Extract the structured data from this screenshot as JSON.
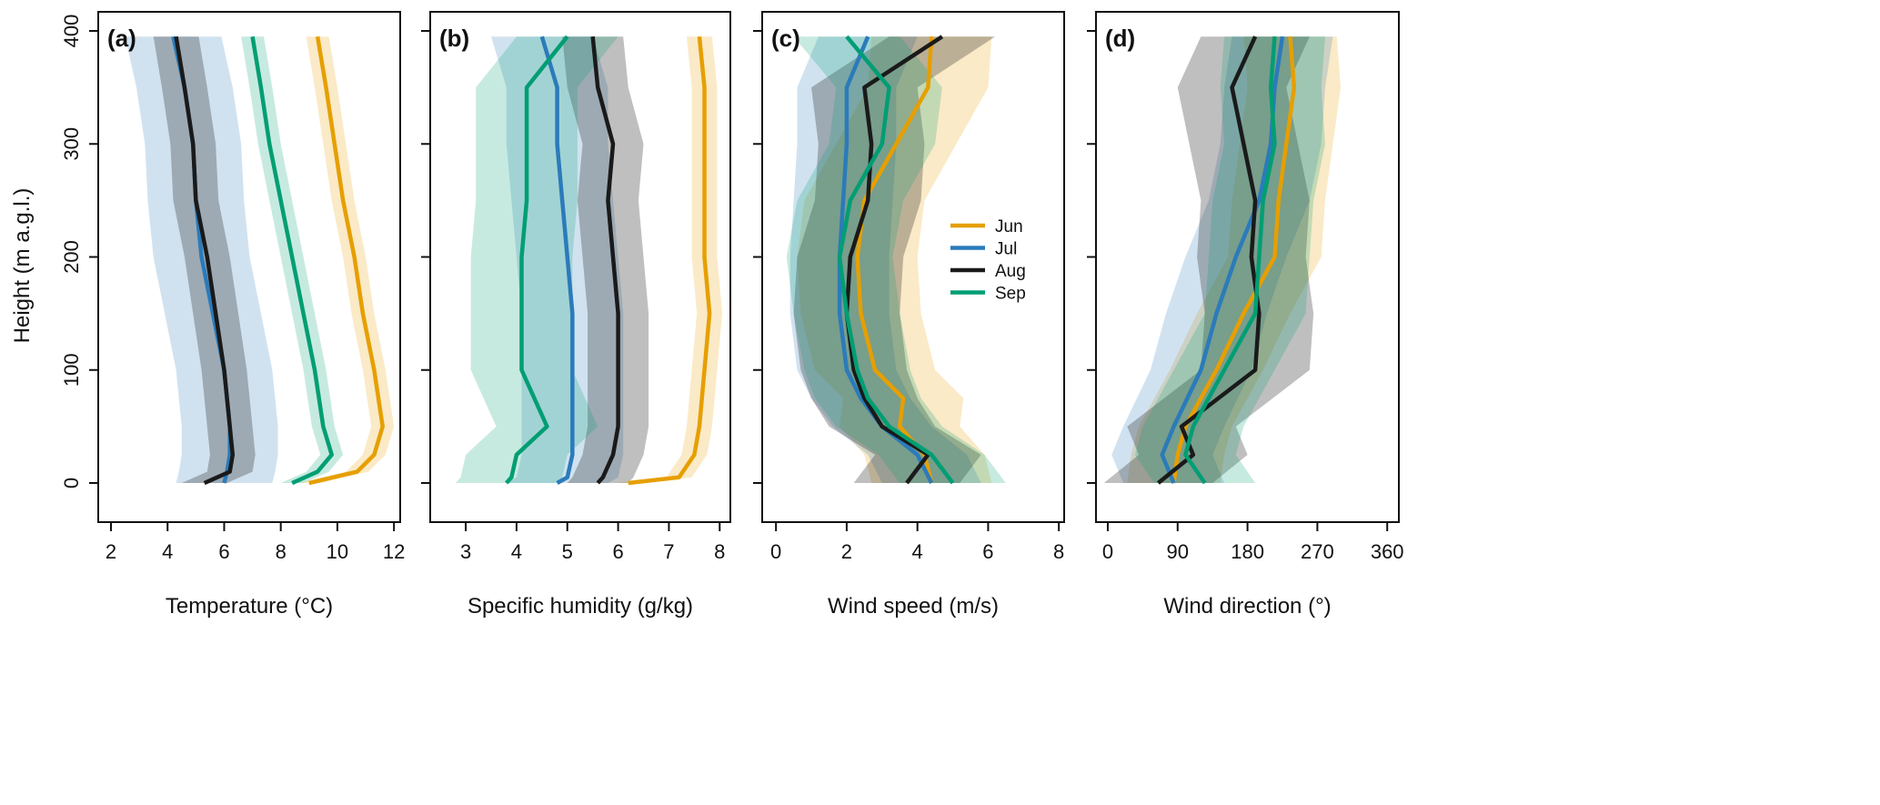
{
  "chart_data": [
    {
      "type": "line",
      "panel_label": "(a)",
      "xlabel": "Temperature (°C)",
      "ylabel": "Height (m a.g.l.)",
      "xlim": [
        1.55,
        12.22
      ],
      "ylim": [
        -34.6,
        416.9
      ],
      "xticks": [
        2,
        4,
        6,
        8,
        10,
        12
      ],
      "yticks": [
        0,
        100,
        200,
        300,
        400
      ],
      "heights": [
        0,
        10,
        25,
        50,
        100,
        150,
        200,
        250,
        300,
        350,
        395
      ],
      "series": [
        {
          "name": "Jun",
          "color": "#E69F00",
          "spread": 0.4,
          "mean": [
            9.0,
            10.7,
            11.3,
            11.6,
            11.3,
            10.9,
            10.6,
            10.2,
            9.9,
            9.6,
            9.3
          ]
        },
        {
          "name": "Jul",
          "color": "#2B7BBA",
          "spread": 1.7,
          "mean": [
            6.0,
            6.1,
            6.2,
            6.2,
            6.0,
            5.6,
            5.2,
            5.0,
            4.9,
            4.6,
            4.2
          ]
        },
        {
          "name": "Aug",
          "color": "#1A1A1A",
          "spread": 0.8,
          "mean": [
            5.3,
            6.2,
            6.3,
            6.2,
            6.0,
            5.7,
            5.4,
            5.0,
            4.9,
            4.6,
            4.3
          ]
        },
        {
          "name": "Sep",
          "color": "#009E73",
          "spread": 0.4,
          "mean": [
            8.4,
            9.3,
            9.8,
            9.5,
            9.2,
            8.8,
            8.4,
            8.0,
            7.6,
            7.3,
            7.0
          ]
        }
      ]
    },
    {
      "type": "line",
      "panel_label": "(b)",
      "xlabel": "Specific humidity (g/kg)",
      "xlim": [
        2.3,
        8.21
      ],
      "ylim": [
        -34.6,
        416.9
      ],
      "xticks": [
        3,
        4,
        5,
        6,
        7,
        8
      ],
      "yticks": [
        0,
        100,
        200,
        300,
        400
      ],
      "heights": [
        0,
        5,
        25,
        50,
        100,
        150,
        200,
        250,
        300,
        350,
        395
      ],
      "series": [
        {
          "name": "Jun",
          "color": "#E69F00",
          "spread": 0.25,
          "mean": [
            6.2,
            7.2,
            7.5,
            7.6,
            7.7,
            7.8,
            7.7,
            7.7,
            7.7,
            7.7,
            7.6
          ]
        },
        {
          "name": "Jul",
          "color": "#2B7BBA",
          "spread": 1.0,
          "mean": [
            4.8,
            5.0,
            5.1,
            5.1,
            5.1,
            5.1,
            5.0,
            4.9,
            4.8,
            4.8,
            4.5
          ]
        },
        {
          "name": "Aug",
          "color": "#1A1A1A",
          "spread": 0.6,
          "mean": [
            5.6,
            5.7,
            5.9,
            6.0,
            6.0,
            6.0,
            5.9,
            5.8,
            5.9,
            5.6,
            5.5
          ]
        },
        {
          "name": "Sep",
          "color": "#009E73",
          "spread": 1.0,
          "mean": [
            3.8,
            3.9,
            4.0,
            4.6,
            4.1,
            4.1,
            4.1,
            4.2,
            4.2,
            4.2,
            5.0
          ]
        }
      ]
    },
    {
      "type": "line",
      "panel_label": "(c)",
      "xlabel": "Wind speed (m/s)",
      "xlim": [
        -0.39,
        8.15
      ],
      "ylim": [
        -34.6,
        416.9
      ],
      "xticks": [
        0,
        2,
        4,
        6,
        8
      ],
      "yticks": [
        0,
        100,
        200,
        300,
        400
      ],
      "heights": [
        0,
        25,
        50,
        75,
        100,
        150,
        200,
        250,
        300,
        350,
        395
      ],
      "legend": {
        "position": "center-right",
        "entries": [
          "Jun",
          "Jul",
          "Aug",
          "Sep"
        ]
      },
      "series": [
        {
          "name": "Jun",
          "color": "#E69F00",
          "spread": 1.7,
          "mean": [
            4.4,
            4.2,
            3.5,
            3.6,
            2.8,
            2.4,
            2.3,
            2.5,
            3.4,
            4.3,
            4.4
          ]
        },
        {
          "name": "Jul",
          "color": "#2B7BBA",
          "spread": 1.4,
          "mean": [
            4.4,
            4.0,
            3.0,
            2.4,
            2.0,
            1.8,
            1.8,
            1.9,
            2.0,
            2.0,
            2.6
          ]
        },
        {
          "name": "Aug",
          "color": "#1A1A1A",
          "spread": 1.5,
          "mean": [
            3.7,
            4.3,
            3.0,
            2.5,
            2.2,
            2.0,
            2.1,
            2.6,
            2.7,
            2.5,
            4.7
          ]
        },
        {
          "name": "Sep",
          "color": "#009E73",
          "spread": 1.5,
          "mean": [
            5.0,
            4.4,
            3.2,
            2.6,
            2.3,
            2.0,
            1.8,
            2.1,
            3.0,
            3.2,
            2.0
          ]
        }
      ]
    },
    {
      "type": "line",
      "panel_label": "(d)",
      "xlabel": "Wind direction (°)",
      "xlim": [
        -15.2,
        375
      ],
      "ylim": [
        -34.6,
        416.9
      ],
      "xticks": [
        0,
        90,
        180,
        270,
        360
      ],
      "yticks": [
        0,
        100,
        200,
        300,
        400
      ],
      "heights": [
        0,
        25,
        50,
        100,
        150,
        200,
        250,
        300,
        350,
        395
      ],
      "series": [
        {
          "name": "Jun",
          "color": "#E69F00",
          "spread": 60,
          "mean": [
            85,
            90,
            100,
            140,
            175,
            215,
            220,
            230,
            240,
            235
          ]
        },
        {
          "name": "Jul",
          "color": "#2B7BBA",
          "spread": 65,
          "mean": [
            85,
            70,
            85,
            120,
            140,
            165,
            195,
            210,
            215,
            225
          ]
        },
        {
          "name": "Aug",
          "color": "#1A1A1A",
          "spread": 70,
          "mean": [
            65,
            110,
            95,
            190,
            195,
            185,
            190,
            175,
            160,
            190
          ]
        },
        {
          "name": "Sep",
          "color": "#009E73",
          "spread": 65,
          "mean": [
            125,
            100,
            110,
            150,
            190,
            195,
            200,
            215,
            210,
            215
          ]
        }
      ]
    }
  ]
}
